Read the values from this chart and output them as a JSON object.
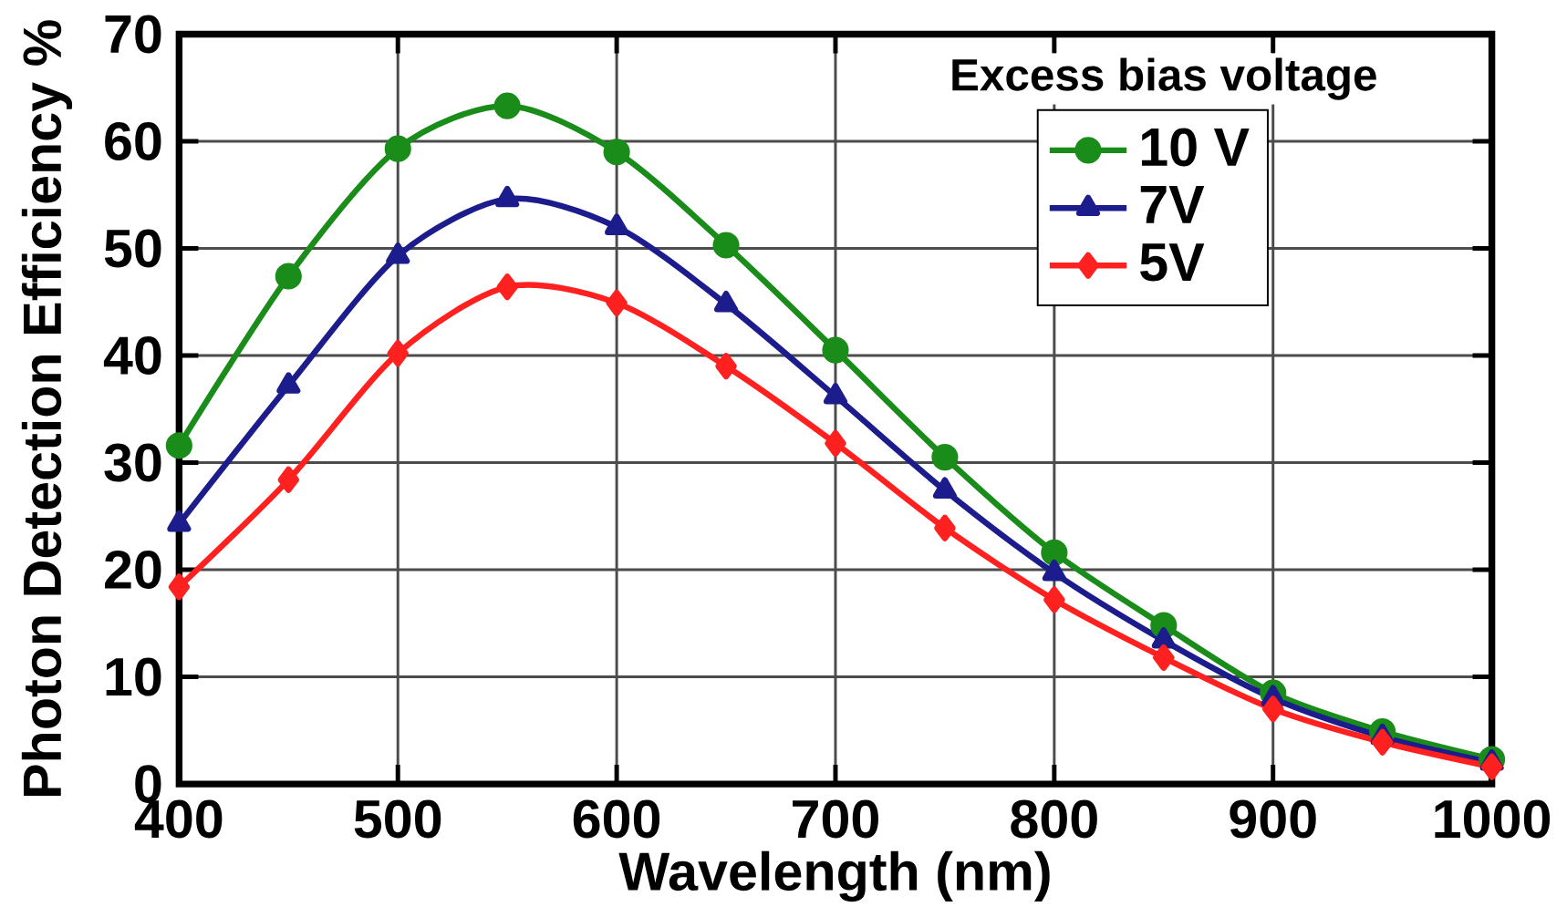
{
  "chart_data": {
    "type": "line",
    "xlabel": "Wavelength (nm)",
    "ylabel": "Photon Detection Efficiency %",
    "legend_title": "Excess bias voltage",
    "x": [
      400,
      450,
      500,
      550,
      600,
      650,
      700,
      750,
      800,
      850,
      900,
      950,
      1000
    ],
    "series": [
      {
        "name": "10 V",
        "color": "#1a8c1a",
        "marker": "circle",
        "values": [
          31.6,
          47.4,
          59.3,
          63.3,
          59,
          50.3,
          40.5,
          30.5,
          21.6,
          14.8,
          8.5,
          4.9,
          2.3
        ]
      },
      {
        "name": "7V",
        "color": "#1c1c8c",
        "marker": "triangle",
        "values": [
          24.3,
          37.2,
          49.3,
          54.6,
          52,
          44.8,
          36.2,
          27.4,
          19.7,
          13.4,
          8,
          4.4,
          2
        ]
      },
      {
        "name": "5V",
        "color": "#ff2020",
        "marker": "diamond",
        "values": [
          18.4,
          28.4,
          40.2,
          46.4,
          44.9,
          39,
          31.8,
          23.9,
          17.2,
          11.8,
          7,
          3.9,
          1.6
        ]
      }
    ],
    "xlim": [
      400,
      1000
    ],
    "ylim": [
      0,
      70
    ],
    "xticks": [
      400,
      500,
      600,
      700,
      800,
      900,
      1000
    ],
    "yticks": [
      0,
      10,
      20,
      30,
      40,
      50,
      60,
      70
    ],
    "grid": true,
    "legend": "top right",
    "line_style": "solid"
  }
}
